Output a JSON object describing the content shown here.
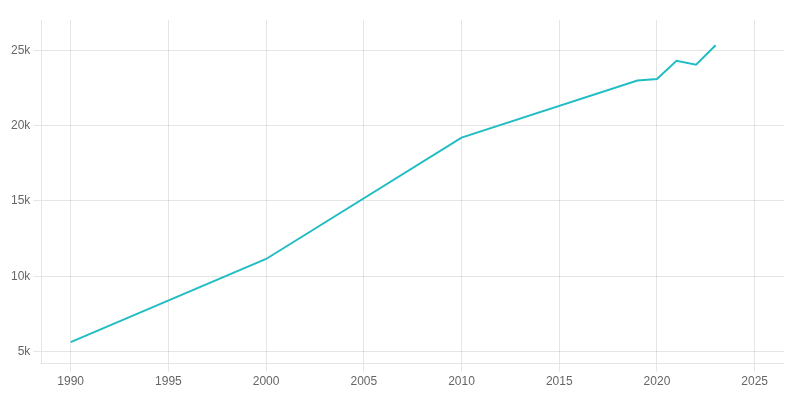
{
  "chart_data": {
    "type": "line",
    "x": [
      1990,
      2000,
      2010,
      2019,
      2020,
      2021,
      2022,
      2023
    ],
    "values": [
      5621,
      11146,
      19205,
      23000,
      23100,
      24300,
      24050,
      25340
    ],
    "color": "#22bdc4",
    "xlim": [
      1988.5,
      2026.5
    ],
    "ylim": [
      4200,
      27000
    ],
    "xticks": [
      1990,
      1995,
      2000,
      2005,
      2010,
      2015,
      2020,
      2025
    ],
    "yticks": [
      {
        "value": 5000,
        "label": "5k"
      },
      {
        "value": 10000,
        "label": "10k"
      },
      {
        "value": 15000,
        "label": "15k"
      },
      {
        "value": 20000,
        "label": "20k"
      },
      {
        "value": 25000,
        "label": "25k"
      }
    ],
    "grid": true
  }
}
